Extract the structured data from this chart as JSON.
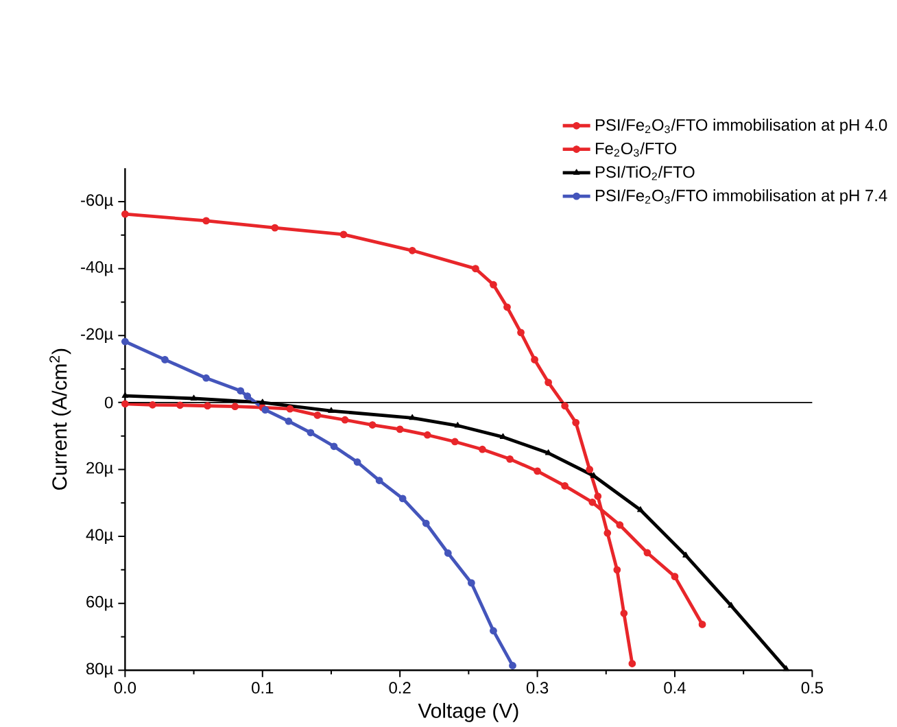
{
  "chart_data": {
    "type": "line",
    "xlabel": "Voltage (V)",
    "ylabel": "Current (A/cm$^{2}$)",
    "xlim": [
      0,
      0.5
    ],
    "xticks": [
      {
        "value": 0,
        "label": "0.0"
      },
      0.1,
      0.2,
      0.3,
      0.4,
      0.5
    ],
    "ylim": [
      80,
      -70
    ],
    "yticks": [
      {
        "value": -60,
        "label": "-60µ"
      },
      {
        "value": -40,
        "label": "-40µ"
      },
      {
        "value": -20,
        "label": "-20µ"
      },
      0,
      {
        "value": 20,
        "label": "20µ"
      },
      {
        "value": 40,
        "label": "40µ"
      },
      {
        "value": 60,
        "label": "60µ"
      },
      {
        "value": 80,
        "label": "80µ"
      }
    ],
    "legend": "top right",
    "grid": false,
    "ref_lines": [
      {
        "axis": "y",
        "value": 0,
        "color": "#000000"
      }
    ],
    "series": [
      {
        "name": "PSI/Fe$_{2}$O$_{3}$/FTO immobilisation at pH 4.0",
        "color": "#e8262a",
        "marker": "circle",
        "x": [
          0,
          0.059,
          0.109,
          0.159,
          0.209,
          0.255,
          0.268,
          0.278,
          0.288,
          0.298,
          0.308,
          0.32,
          0.328,
          0.338,
          0.344,
          0.351,
          0.358,
          0.363,
          0.369
        ],
        "values": [
          -56.3,
          -54.3,
          -52.2,
          -50.2,
          -45.4,
          -40,
          -35.2,
          -28.5,
          -20.9,
          -12.8,
          -6,
          1,
          6,
          20,
          28,
          39,
          50,
          63,
          78
        ]
      },
      {
        "name": "Fe$_{2}$O$_{3}$/FTO",
        "color": "#e8262a",
        "marker": "circle",
        "x": [
          0,
          0.02,
          0.04,
          0.06,
          0.08,
          0.1,
          0.12,
          0.14,
          0.16,
          0.18,
          0.2,
          0.22,
          0.24,
          0.26,
          0.28,
          0.3,
          0.32,
          0.34,
          0.36,
          0.38,
          0.4,
          0.42
        ],
        "values": [
          0.4,
          0.7,
          0.8,
          1,
          1.2,
          1.5,
          1.9,
          3.8,
          5.2,
          6.7,
          8,
          9.7,
          11.7,
          14,
          16.9,
          20.5,
          24.9,
          29.8,
          36.6,
          44.9,
          52,
          66.3
        ]
      },
      {
        "name": "PSI/TiO$_{2}$/FTO",
        "color": "#000000",
        "marker": "triangle",
        "x": [
          0,
          0.05,
          0.1,
          0.15,
          0.209,
          0.242,
          0.275,
          0.308,
          0.341,
          0.375,
          0.408,
          0.441,
          0.481
        ],
        "values": [
          -2,
          -1.2,
          0,
          2.5,
          4.6,
          6.9,
          10.3,
          15.1,
          21.9,
          32.1,
          45.7,
          60.7,
          79.6
        ]
      },
      {
        "name": "PSI/Fe$_{2}$O$_{3}$/FTO immobilisation at pH 7.4",
        "color": "#4455bb",
        "marker": "circle",
        "x": [
          0,
          0.029,
          0.059,
          0.084,
          0.089,
          0.102,
          0.119,
          0.135,
          0.152,
          0.169,
          0.185,
          0.202,
          0.219,
          0.235,
          0.252,
          0.268,
          0.282
        ],
        "values": [
          -18.2,
          -12.8,
          -7.3,
          -3.5,
          -1.9,
          2.2,
          5.6,
          9,
          13.1,
          17.8,
          23.3,
          28.7,
          36.1,
          45,
          53.9,
          68.2,
          78.6
        ]
      }
    ]
  }
}
